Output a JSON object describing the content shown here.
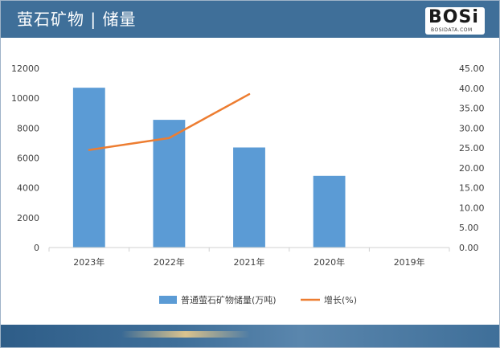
{
  "header": {
    "title": "萤石矿物 | 储量"
  },
  "logo": {
    "text": "BOSi",
    "sub": "BOSIDATA.COM"
  },
  "chart_data": {
    "type": "bar",
    "categories": [
      "2023年",
      "2022年",
      "2021年",
      "2020年",
      "2019年"
    ],
    "series": [
      {
        "name": "普通萤石矿物储量(万吨)",
        "type": "bar",
        "axis": "left",
        "color": "#5b9bd5",
        "values": [
          10700,
          8550,
          6700,
          4800,
          null
        ]
      },
      {
        "name": "增长(%)",
        "type": "line",
        "axis": "right",
        "color": "#ed7d31",
        "values": [
          24.5,
          27.5,
          38.5,
          null,
          null
        ]
      }
    ],
    "y_left": {
      "min": 0,
      "max": 12000,
      "ticks": [
        "0",
        "2000",
        "4000",
        "6000",
        "8000",
        "10000",
        "12000"
      ]
    },
    "y_right": {
      "min": 0,
      "max": 45,
      "ticks": [
        "0.00",
        "5.00",
        "10.00",
        "15.00",
        "20.00",
        "25.00",
        "30.00",
        "35.00",
        "40.00",
        "45.00"
      ]
    },
    "legend_position": "bottom",
    "grid": false
  }
}
